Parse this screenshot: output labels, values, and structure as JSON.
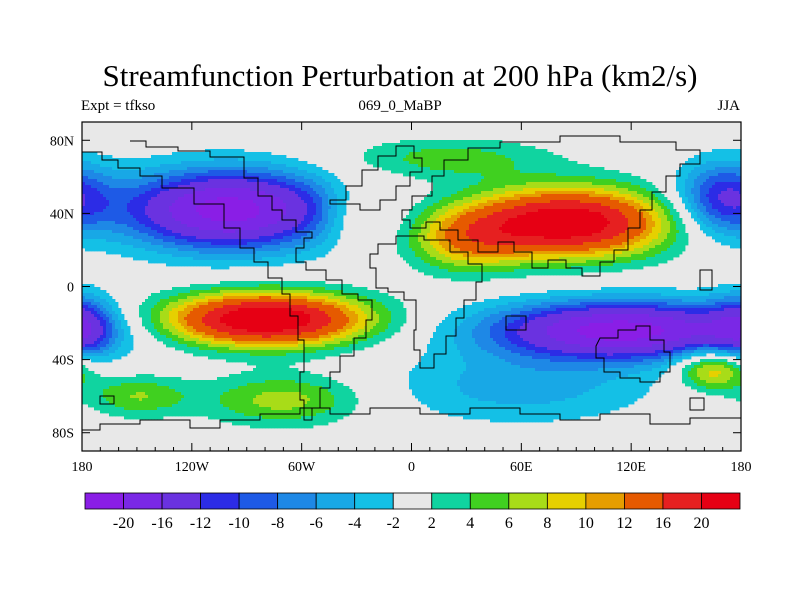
{
  "header": {
    "title": "Streamfunction Perturbation at 200 hPa (km2/s)",
    "left": "Expt = tfkso",
    "center": "069_0_MaBP",
    "right": "JJA"
  },
  "chart_data": {
    "type": "heatmap",
    "title": "Streamfunction Perturbation at 200 hPa (km2/s)",
    "units": "km2/s",
    "level": "200 hPa",
    "experiment": "tfkso",
    "case": "069_0_MaBP",
    "season": "JJA",
    "xlim": [
      -180,
      180
    ],
    "ylim": [
      -90,
      90
    ],
    "x_ticks": [
      {
        "lon": -180,
        "label": "180"
      },
      {
        "lon": -120,
        "label": "120W"
      },
      {
        "lon": -60,
        "label": "60W"
      },
      {
        "lon": 0,
        "label": "0"
      },
      {
        "lon": 60,
        "label": "60E"
      },
      {
        "lon": 120,
        "label": "120E"
      },
      {
        "lon": 180,
        "label": "180"
      }
    ],
    "y_ticks": [
      {
        "lat": 80,
        "label": "80N"
      },
      {
        "lat": 40,
        "label": "40N"
      },
      {
        "lat": 0,
        "label": "0"
      },
      {
        "lat": -40,
        "label": "40S"
      },
      {
        "lat": -80,
        "label": "80S"
      }
    ],
    "contour_levels": [
      -20,
      -16,
      -12,
      -10,
      -8,
      -6,
      -4,
      -2,
      2,
      4,
      6,
      8,
      10,
      12,
      16,
      20
    ],
    "level_labels": [
      "-20",
      "-16",
      "-12",
      "-10",
      "-8",
      "-6",
      "-4",
      "-2",
      "2",
      "4",
      "6",
      "8",
      "10",
      "12",
      "16",
      "20"
    ],
    "colors": [
      "#8a1ee6",
      "#7a28e6",
      "#6a32e0",
      "#2c2ce6",
      "#1e5ae6",
      "#1e88e6",
      "#18a8e6",
      "#14c0e6",
      "#e8e8e8",
      "#10d4a0",
      "#40d020",
      "#a8dc18",
      "#e6d000",
      "#e69e00",
      "#e65a00",
      "#e62020",
      "#e60014"
    ],
    "features": [
      {
        "lon": -100,
        "lat": 42,
        "value": -22,
        "sx": 40,
        "sy": 15
      },
      {
        "lon": 85,
        "lat": 35,
        "value": 24,
        "sx": 38,
        "sy": 13
      },
      {
        "lon": 30,
        "lat": 25,
        "value": 9,
        "sx": 22,
        "sy": 12
      },
      {
        "lon": -80,
        "lat": -18,
        "value": 25,
        "sx": 38,
        "sy": 10
      },
      {
        "lon": 115,
        "lat": -24,
        "value": -22,
        "sx": 50,
        "sy": 11
      },
      {
        "lon": 170,
        "lat": 48,
        "value": -12,
        "sx": 18,
        "sy": 14
      },
      {
        "lon": -180,
        "lat": -22,
        "value": -10,
        "sx": 12,
        "sy": 12
      },
      {
        "lon": 165,
        "lat": -45,
        "value": 11,
        "sx": 14,
        "sy": 8
      },
      {
        "lon": -70,
        "lat": -62,
        "value": 7,
        "sx": 30,
        "sy": 10
      },
      {
        "lon": 60,
        "lat": -55,
        "value": -5,
        "sx": 50,
        "sy": 14
      },
      {
        "lon": 20,
        "lat": 70,
        "value": 5,
        "sx": 40,
        "sy": 8
      },
      {
        "lon": -35,
        "lat": 40,
        "value": 4,
        "sx": 10,
        "sy": 12
      },
      {
        "lon": -150,
        "lat": -60,
        "value": 6,
        "sx": 20,
        "sy": 8
      }
    ],
    "colorbar_position": "bottom"
  }
}
